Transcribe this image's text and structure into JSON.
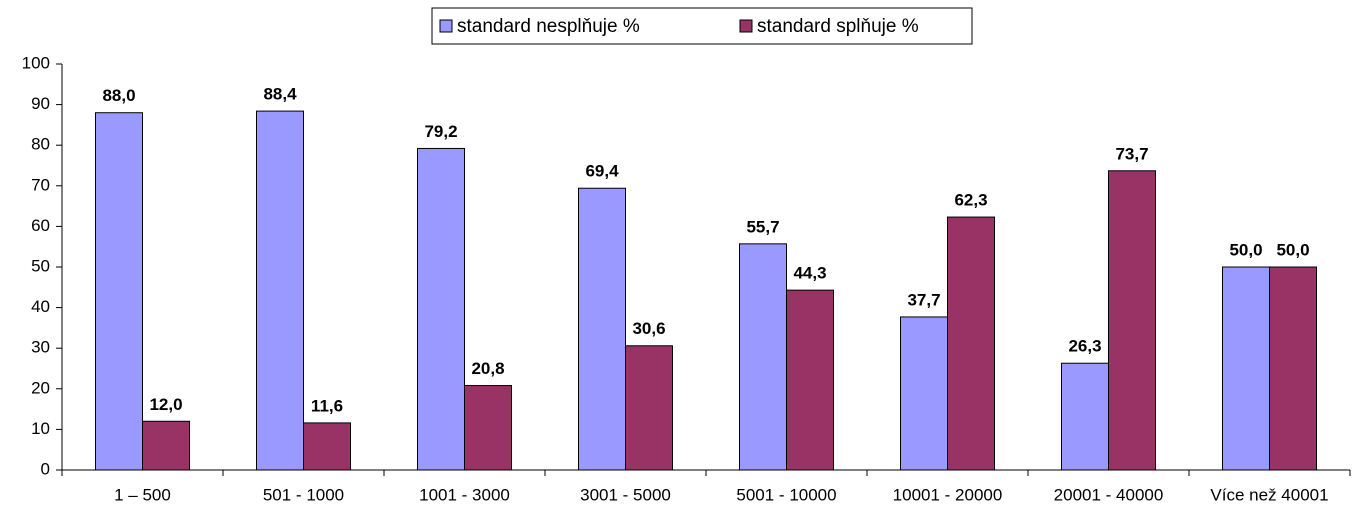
{
  "chart_data": {
    "type": "bar",
    "categories": [
      "1 – 500",
      "501 - 1000",
      "1001 - 3000",
      "3001 - 5000",
      "5001 - 10000",
      "10001 - 20000",
      "20001 - 40000",
      "Více než 40001"
    ],
    "series": [
      {
        "name": "standard nesplňuje %",
        "color": "#9999ff",
        "values": [
          88.0,
          88.4,
          79.2,
          69.4,
          55.7,
          37.7,
          26.3,
          50.0
        ],
        "value_labels": [
          "88,0",
          "88,4",
          "79,2",
          "69,4",
          "55,7",
          "37,7",
          "26,3",
          "50,0"
        ]
      },
      {
        "name": "standard splňuje %",
        "color": "#993366",
        "values": [
          12.0,
          11.6,
          20.8,
          30.6,
          44.3,
          62.3,
          73.7,
          50.0
        ],
        "value_labels": [
          "12,0",
          "11,6",
          "20,8",
          "30,6",
          "44,3",
          "62,3",
          "73,7",
          "50,0"
        ]
      }
    ],
    "ylim": [
      0,
      100
    ],
    "yticks": [
      0,
      10,
      20,
      30,
      40,
      50,
      60,
      70,
      80,
      90,
      100
    ],
    "grid": false,
    "legend": "top"
  }
}
